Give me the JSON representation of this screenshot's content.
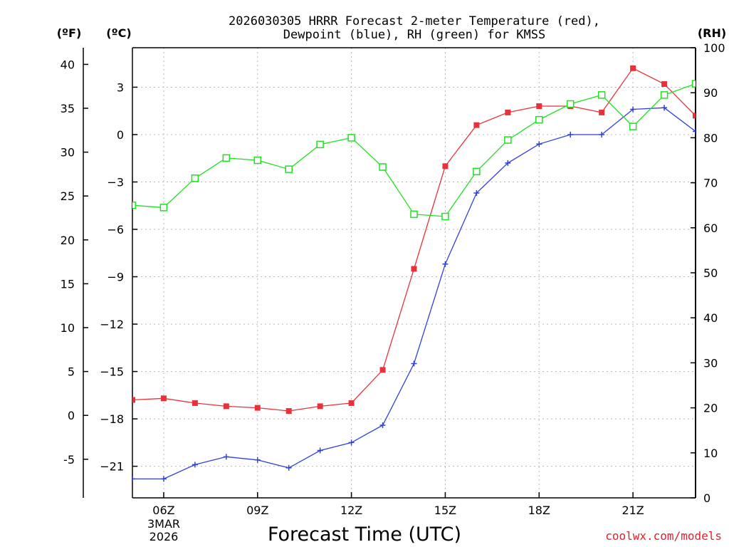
{
  "chart_data": {
    "type": "line",
    "title_line1": "2026030305 HRRR Forecast 2-meter Temperature (red),",
    "title_line2": "Dewpoint (blue), RH (green) for KMSS",
    "xlabel": "Forecast Time (UTC)",
    "credit": "coolwx.com/models",
    "units": {
      "fahrenheit": "(ºF)",
      "celsius": "(ºC)",
      "rh": "(RH)"
    },
    "x_hours": [
      5,
      6,
      7,
      8,
      9,
      10,
      11,
      12,
      13,
      14,
      15,
      16,
      17,
      18,
      19,
      20,
      21,
      22,
      23
    ],
    "x_tick_labels": [
      {
        "hour": 6,
        "label": "06Z"
      },
      {
        "hour": 9,
        "label": "09Z"
      },
      {
        "hour": 12,
        "label": "12Z"
      },
      {
        "hour": 15,
        "label": "15Z"
      },
      {
        "hour": 18,
        "label": "18Z"
      },
      {
        "hour": 21,
        "label": "21Z"
      }
    ],
    "date_label": [
      "3MAR",
      "2026"
    ],
    "xlim_hours": [
      5,
      23
    ],
    "celsius_axis": {
      "ylim": [
        -23,
        5.5
      ],
      "ticks": [
        3,
        0,
        -3,
        -6,
        -9,
        -12,
        -15,
        -18,
        -21
      ],
      "tick_labels": [
        "3",
        "0",
        "−3",
        "−6",
        "−9",
        "−12",
        "−15",
        "−18",
        "−21"
      ]
    },
    "fahrenheit_axis": {
      "ticks": [
        40,
        35,
        30,
        25,
        20,
        15,
        10,
        5,
        0,
        -5
      ],
      "tick_labels": [
        "40",
        "35",
        "30",
        "25",
        "20",
        "15",
        "10",
        "5",
        "0",
        "-5"
      ]
    },
    "rh_axis": {
      "ylim": [
        0,
        100
      ],
      "ticks": [
        0,
        10,
        20,
        30,
        40,
        50,
        60,
        70,
        80,
        90,
        100
      ],
      "tick_labels": [
        "0",
        "10",
        "20",
        "30",
        "40",
        "50",
        "60",
        "70",
        "80",
        "90",
        "100"
      ]
    },
    "grid": true,
    "series": [
      {
        "name": "Temperature",
        "color": "#e8323a",
        "axis": "celsius",
        "marker": "filled-square",
        "values": [
          -16.8,
          -16.7,
          -17.0,
          -17.2,
          -17.3,
          -17.5,
          -17.2,
          -17.0,
          -14.9,
          -8.5,
          -2.0,
          0.6,
          1.4,
          1.8,
          1.8,
          1.4,
          4.2,
          3.2,
          1.2
        ]
      },
      {
        "name": "Dewpoint",
        "color": "#3040e0",
        "axis": "celsius",
        "marker": "plus",
        "values": [
          -21.8,
          -21.8,
          -20.9,
          -20.4,
          -20.6,
          -21.1,
          -20.0,
          -19.5,
          -18.4,
          -14.5,
          -8.2,
          -3.7,
          -1.8,
          -0.6,
          0.0,
          0.0,
          1.6,
          1.7,
          0.2
        ]
      },
      {
        "name": "RH",
        "color": "#20e020",
        "axis": "rh",
        "marker": "open-square",
        "values": [
          65,
          64.5,
          71,
          75.5,
          75,
          73,
          78.5,
          80,
          73.5,
          63,
          62.5,
          72.5,
          79.5,
          84,
          87.5,
          89.5,
          82.5,
          89.5,
          92
        ]
      }
    ]
  }
}
